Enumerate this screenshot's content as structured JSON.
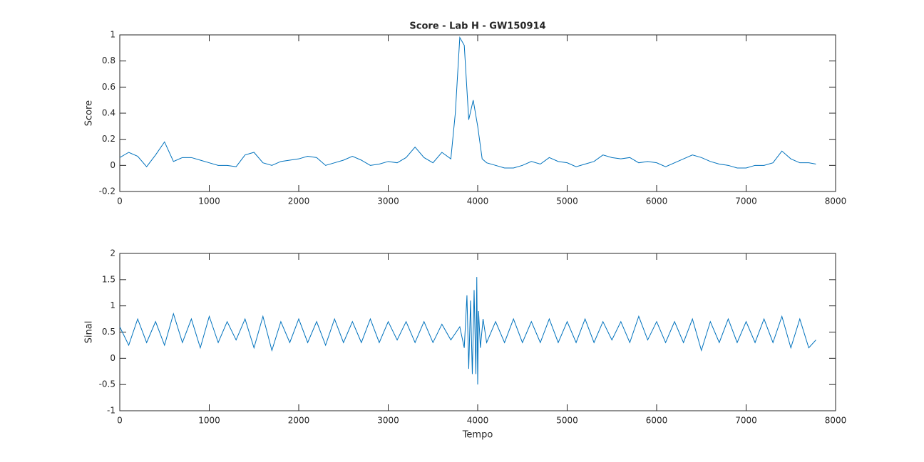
{
  "chart_data": [
    {
      "type": "line",
      "title": "Score - Lab H - GW150914",
      "ylabel": "Score",
      "xlim": [
        0,
        8000
      ],
      "xticks": [
        0,
        1000,
        2000,
        3000,
        4000,
        5000,
        6000,
        7000,
        8000
      ],
      "ylim": [
        -0.2,
        1
      ],
      "yticks": [
        -0.2,
        0,
        0.2,
        0.4,
        0.6,
        0.8,
        1
      ],
      "series": [
        {
          "color": "#0072bd",
          "x": [
            0,
            100,
            200,
            300,
            400,
            500,
            600,
            700,
            800,
            900,
            1000,
            1100,
            1200,
            1300,
            1400,
            1500,
            1600,
            1700,
            1800,
            1900,
            2000,
            2100,
            2200,
            2300,
            2400,
            2500,
            2600,
            2700,
            2800,
            2900,
            3000,
            3100,
            3200,
            3300,
            3400,
            3500,
            3600,
            3700,
            3750,
            3800,
            3850,
            3900,
            3950,
            4000,
            4050,
            4100,
            4200,
            4300,
            4400,
            4500,
            4600,
            4700,
            4800,
            4900,
            5000,
            5100,
            5200,
            5300,
            5400,
            5500,
            5600,
            5700,
            5800,
            5900,
            6000,
            6100,
            6200,
            6300,
            6400,
            6500,
            6600,
            6700,
            6800,
            6900,
            7000,
            7100,
            7200,
            7300,
            7400,
            7500,
            7600,
            7700,
            7780
          ],
          "values": [
            0.06,
            0.1,
            0.07,
            -0.01,
            0.08,
            0.18,
            0.03,
            0.06,
            0.06,
            0.04,
            0.02,
            0.0,
            0.0,
            -0.01,
            0.08,
            0.1,
            0.02,
            0.0,
            0.03,
            0.04,
            0.05,
            0.07,
            0.06,
            0.0,
            0.02,
            0.04,
            0.07,
            0.04,
            0.0,
            0.01,
            0.03,
            0.02,
            0.06,
            0.14,
            0.06,
            0.02,
            0.1,
            0.05,
            0.4,
            0.98,
            0.92,
            0.35,
            0.5,
            0.3,
            0.05,
            0.02,
            0.0,
            -0.02,
            -0.02,
            0.0,
            0.03,
            0.01,
            0.06,
            0.03,
            0.02,
            -0.01,
            0.01,
            0.03,
            0.08,
            0.06,
            0.05,
            0.06,
            0.02,
            0.03,
            0.02,
            -0.01,
            0.02,
            0.05,
            0.08,
            0.06,
            0.03,
            0.01,
            0.0,
            -0.02,
            -0.02,
            0.0,
            0.0,
            0.02,
            0.11,
            0.05,
            0.02,
            0.02,
            0.01
          ]
        }
      ]
    },
    {
      "type": "line",
      "xlabel": "Tempo",
      "ylabel": "Sinal",
      "xlim": [
        0,
        8000
      ],
      "xticks": [
        0,
        1000,
        2000,
        3000,
        4000,
        5000,
        6000,
        7000,
        8000
      ],
      "ylim": [
        -1,
        2
      ],
      "yticks": [
        -1,
        -0.5,
        0,
        0.5,
        1,
        1.5,
        2
      ],
      "series": [
        {
          "color": "#0072bd",
          "x": [
            0,
            100,
            200,
            300,
            400,
            500,
            600,
            700,
            800,
            900,
            1000,
            1100,
            1200,
            1300,
            1400,
            1500,
            1600,
            1700,
            1800,
            1900,
            2000,
            2100,
            2200,
            2300,
            2400,
            2500,
            2600,
            2700,
            2800,
            2900,
            3000,
            3100,
            3200,
            3300,
            3400,
            3500,
            3600,
            3700,
            3800,
            3850,
            3880,
            3900,
            3920,
            3940,
            3960,
            3980,
            3990,
            4000,
            4010,
            4030,
            4060,
            4100,
            4200,
            4300,
            4400,
            4500,
            4600,
            4700,
            4800,
            4900,
            5000,
            5100,
            5200,
            5300,
            5400,
            5500,
            5600,
            5700,
            5800,
            5900,
            6000,
            6100,
            6200,
            6300,
            6400,
            6500,
            6600,
            6700,
            6800,
            6900,
            7000,
            7100,
            7200,
            7300,
            7400,
            7500,
            7600,
            7700,
            7780
          ],
          "values": [
            0.6,
            0.25,
            0.75,
            0.3,
            0.7,
            0.25,
            0.85,
            0.3,
            0.75,
            0.2,
            0.8,
            0.3,
            0.7,
            0.35,
            0.75,
            0.2,
            0.8,
            0.15,
            0.7,
            0.3,
            0.75,
            0.3,
            0.7,
            0.25,
            0.75,
            0.3,
            0.7,
            0.3,
            0.75,
            0.3,
            0.7,
            0.35,
            0.7,
            0.3,
            0.7,
            0.3,
            0.65,
            0.35,
            0.6,
            0.2,
            1.2,
            -0.2,
            1.1,
            -0.3,
            1.3,
            -0.3,
            1.55,
            -0.5,
            0.9,
            0.2,
            0.75,
            0.3,
            0.7,
            0.3,
            0.75,
            0.3,
            0.7,
            0.3,
            0.75,
            0.3,
            0.7,
            0.3,
            0.75,
            0.3,
            0.7,
            0.35,
            0.7,
            0.3,
            0.8,
            0.35,
            0.7,
            0.3,
            0.7,
            0.3,
            0.75,
            0.15,
            0.7,
            0.3,
            0.75,
            0.3,
            0.7,
            0.3,
            0.75,
            0.3,
            0.8,
            0.2,
            0.75,
            0.2,
            0.35
          ]
        }
      ]
    }
  ]
}
